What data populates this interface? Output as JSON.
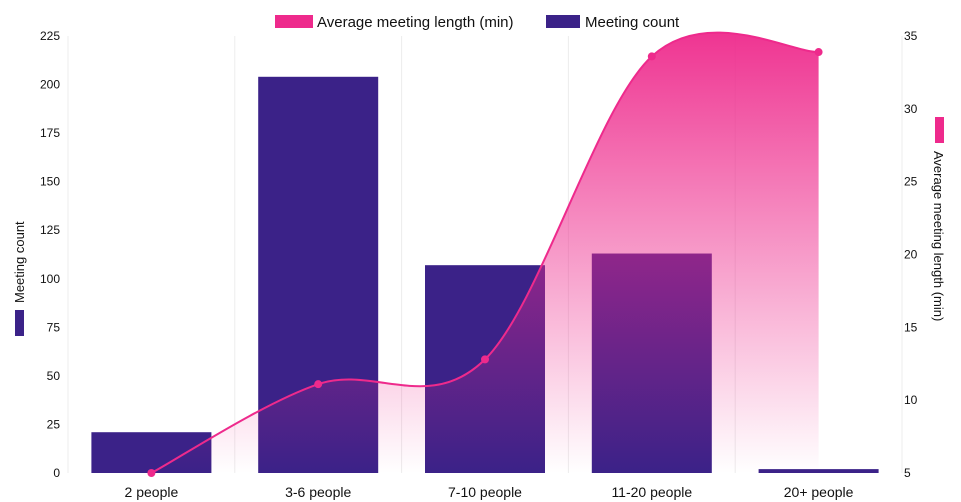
{
  "chart_data": {
    "type": "bar",
    "categories": [
      "2 people",
      "3-6 people",
      "7-10 people",
      "11-20 people",
      "20+ people"
    ],
    "series": [
      {
        "name": "Meeting count",
        "type": "bar",
        "axis": "left",
        "color": "#3b2288",
        "values": [
          21,
          204,
          107,
          113,
          2
        ]
      },
      {
        "name": "Average meeting length (min)",
        "type": "line",
        "axis": "right",
        "color": "#ee2a8c",
        "smooth": true,
        "area_fill": "gradient",
        "values": [
          5,
          11.1,
          12.8,
          33.6,
          33.9
        ]
      }
    ],
    "y_left": {
      "label": "Meeting count",
      "ylim": [
        0,
        225
      ],
      "ticks": [
        "0",
        "25",
        "50",
        "75",
        "100",
        "125",
        "150",
        "175",
        "200",
        "225"
      ]
    },
    "y_right": {
      "label": "Average meeting length (min)",
      "ylim": [
        5,
        35
      ],
      "ticks": [
        "5",
        "10",
        "15",
        "20",
        "25",
        "30",
        "35"
      ]
    },
    "legend": {
      "position": "top-center",
      "items": [
        "Average meeting length (min)",
        "Meeting count"
      ]
    },
    "grid": "vertical"
  }
}
